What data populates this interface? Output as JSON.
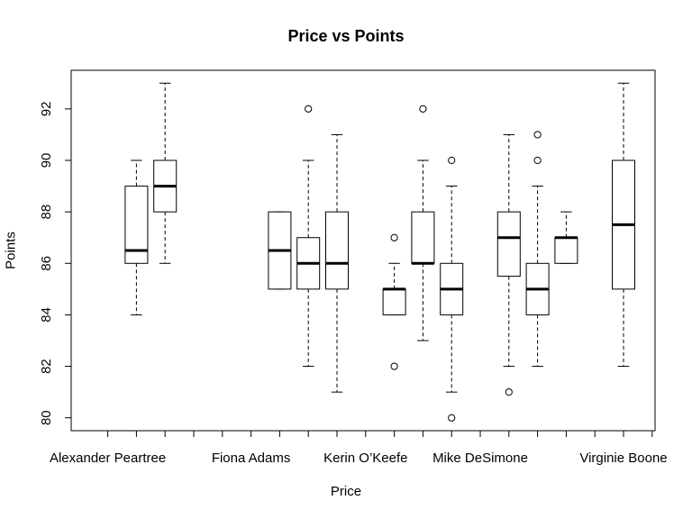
{
  "chart_data": {
    "type": "box",
    "title": "Price vs Points",
    "xlabel": "Price",
    "ylabel": "Points",
    "ylim": [
      79.5,
      93.5
    ],
    "yticks": [
      80,
      82,
      84,
      86,
      88,
      90,
      92
    ],
    "x_slots": 20,
    "x_tick_labels": [
      {
        "slot": 1,
        "label": "Alexander Peartree"
      },
      {
        "slot": 6,
        "label": "Fiona Adams"
      },
      {
        "slot": 10,
        "label": "Kerin O’Keefe"
      },
      {
        "slot": 14,
        "label": "Mike DeSimone"
      },
      {
        "slot": 19,
        "label": "Virginie Boone"
      }
    ],
    "boxes": [
      {
        "slot": 2,
        "min": 84,
        "q1": 86,
        "median": 86.5,
        "q3": 89,
        "max": 90,
        "outliers": []
      },
      {
        "slot": 3,
        "min": 86,
        "q1": 88,
        "median": 89,
        "q3": 90,
        "max": 93,
        "outliers": []
      },
      {
        "slot": 7,
        "min": 85,
        "q1": 85,
        "median": 86.5,
        "q3": 88,
        "max": 88,
        "outliers": []
      },
      {
        "slot": 8,
        "min": 82,
        "q1": 85,
        "median": 86,
        "q3": 87,
        "max": 90,
        "outliers": [
          92
        ]
      },
      {
        "slot": 9,
        "min": 81,
        "q1": 85,
        "median": 86,
        "q3": 88,
        "max": 91,
        "outliers": []
      },
      {
        "slot": 11,
        "min": 84,
        "q1": 84,
        "median": 85,
        "q3": 85,
        "max": 86,
        "outliers": [
          87,
          82
        ]
      },
      {
        "slot": 12,
        "min": 83,
        "q1": 86,
        "median": 86,
        "q3": 88,
        "max": 90,
        "outliers": [
          92
        ]
      },
      {
        "slot": 13,
        "min": 81,
        "q1": 84,
        "median": 85,
        "q3": 86,
        "max": 89,
        "outliers": [
          90,
          80
        ]
      },
      {
        "slot": 15,
        "min": 82,
        "q1": 85.5,
        "median": 87,
        "q3": 88,
        "max": 91,
        "outliers": [
          81
        ]
      },
      {
        "slot": 16,
        "min": 82,
        "q1": 84,
        "median": 85,
        "q3": 86,
        "max": 89,
        "outliers": [
          91,
          90
        ]
      },
      {
        "slot": 17,
        "min": 86,
        "q1": 86,
        "median": 87,
        "q3": 87,
        "max": 88,
        "outliers": []
      },
      {
        "slot": 19,
        "min": 82,
        "q1": 85,
        "median": 87.5,
        "q3": 90,
        "max": 93,
        "outliers": []
      }
    ]
  }
}
